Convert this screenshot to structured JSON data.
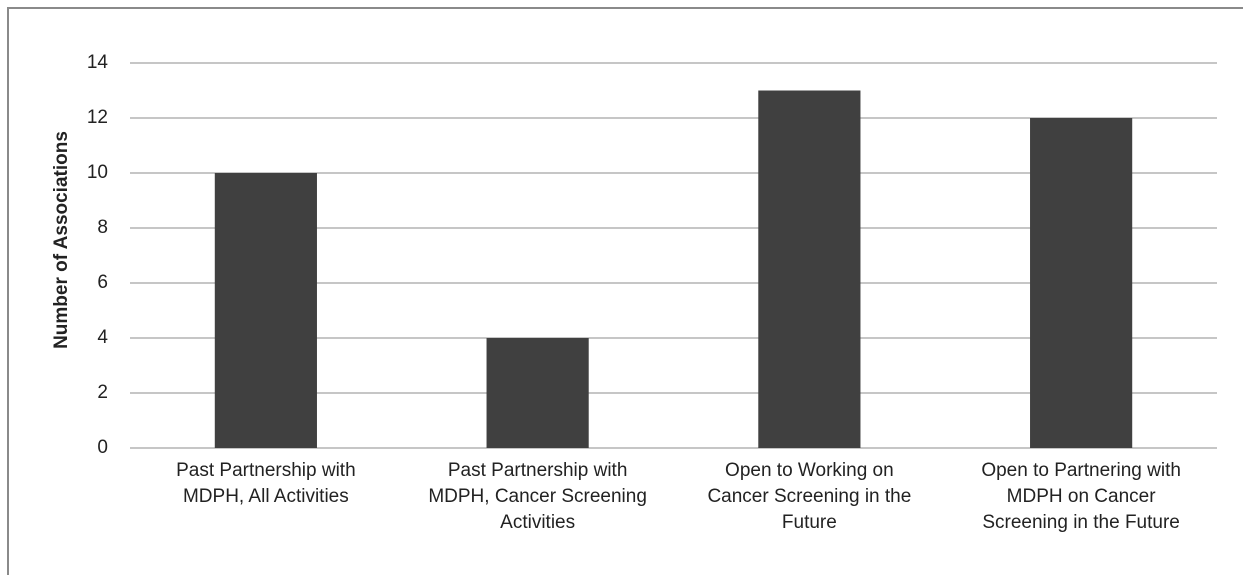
{
  "chart_data": {
    "type": "bar",
    "y_label": "Number of Associations",
    "categories": [
      "Past Partnership with\nMDPH, All Activities",
      "Past Partnership with\nMDPH, Cancer Screening\nActivities",
      "Open to Working on\nCancer Screening in the\nFuture",
      "Open to Partnering with\nMDPH on Cancer\nScreening in the Future"
    ],
    "values": [
      10,
      4,
      13,
      12
    ],
    "color": "#404040",
    "ylim": [
      0,
      14
    ],
    "yticks": [
      0,
      2,
      4,
      6,
      8,
      10,
      12,
      14
    ],
    "grid": true
  }
}
